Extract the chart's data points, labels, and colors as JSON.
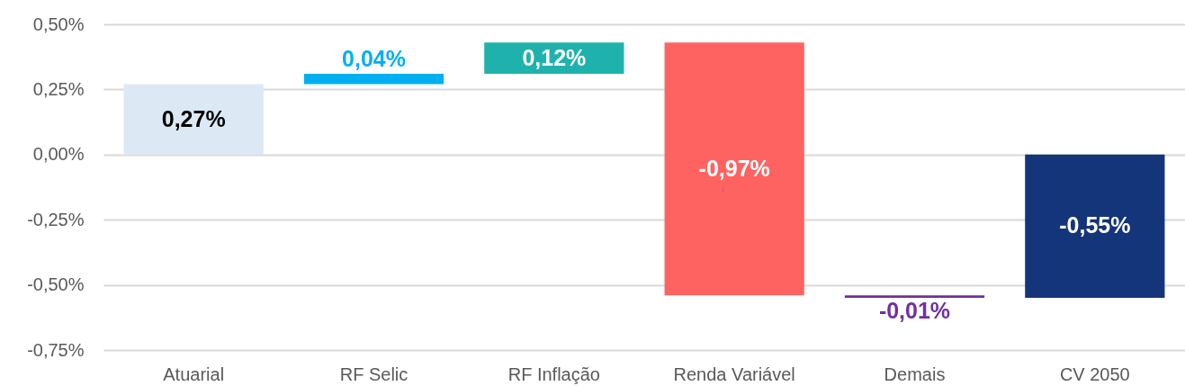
{
  "chart_data": {
    "type": "bar",
    "categories": [
      "Atuarial",
      "RF Selic",
      "RF Inflação",
      "Renda Variável",
      "Demais",
      "CV 2050"
    ],
    "values": [
      0.27,
      0.04,
      0.12,
      -0.97,
      -0.01,
      -0.55
    ],
    "base": [
      0,
      0.27,
      0.31,
      0.43,
      -0.54,
      0
    ],
    "colors": [
      "#dce9f5",
      "#00b0f0",
      "#1fb2ac",
      "#ff6361",
      "#7030a0",
      "#15357a"
    ],
    "value_labels": [
      "0,27%",
      "0,04%",
      "0,12%",
      "-0,97%",
      "-0,01%",
      "-0,55%"
    ],
    "ylim": [
      -0.75,
      0.5
    ],
    "yticks": [
      {
        "value": 0.5,
        "label": "0,50%"
      },
      {
        "value": 0.25,
        "label": "0,25%"
      },
      {
        "value": 0,
        "label": "0,00%"
      },
      {
        "value": -0.25,
        "label": "-0,25%"
      },
      {
        "value": -0.5,
        "label": "-0,50%"
      },
      {
        "value": -0.75,
        "label": "-0,75%"
      }
    ],
    "grid": "y"
  }
}
